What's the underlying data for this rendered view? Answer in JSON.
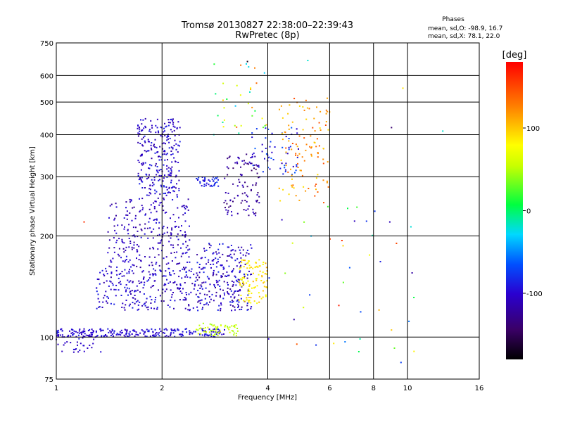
{
  "chart_data": {
    "type": "scatter",
    "title": "Tromsø 20130827 22:38:00–22:39:43",
    "subtitle": "RwPretec (8p)",
    "xlabel": "Frequency [MHz]",
    "ylabel": "Stationary phase Virtual Height [km]",
    "x_scale": "log",
    "y_scale": "log",
    "xlim": [
      1,
      16
    ],
    "ylim": [
      75,
      750
    ],
    "x_ticks": [
      1,
      2,
      4,
      6,
      8,
      10,
      16
    ],
    "y_ticks": [
      75,
      100,
      200,
      300,
      400,
      500,
      600,
      750
    ],
    "x_tick_labels": [
      "1",
      "2",
      "4",
      "6",
      "8",
      "10",
      "16"
    ],
    "y_tick_labels": [
      "75",
      "100",
      "200",
      "300",
      "400",
      "500",
      "600",
      "750"
    ],
    "grid": true,
    "stats": {
      "header": "Phases",
      "line_o": "mean, sd,O: -98.9, 16.7",
      "line_x": "mean, sd,X:  78.1, 22.0"
    },
    "colorbar": {
      "label": "[deg]",
      "range": [
        -180,
        180
      ],
      "ticks": [
        100,
        0,
        -100
      ],
      "tick_labels": [
        "100",
        "0",
        "-100"
      ]
    },
    "clusters": [
      {
        "f": [
          1.0,
          3.05
        ],
        "h": [
          100,
          106
        ],
        "n": 240,
        "phase": [
          -110,
          -85
        ]
      },
      {
        "f": [
          2.5,
          3.3
        ],
        "h": [
          101,
          110
        ],
        "n": 60,
        "phase": [
          40,
          70
        ]
      },
      {
        "f": [
          1.0,
          1.35
        ],
        "h": [
          90,
          102
        ],
        "n": 40,
        "phase": [
          -115,
          -90
        ]
      },
      {
        "f": [
          1.3,
          2.6
        ],
        "h": [
          120,
          160
        ],
        "n": 260,
        "phase": [
          -120,
          -85
        ]
      },
      {
        "f": [
          1.4,
          2.4
        ],
        "h": [
          160,
          260
        ],
        "n": 260,
        "phase": [
          -125,
          -90
        ]
      },
      {
        "f": [
          1.7,
          2.25
        ],
        "h": [
          260,
          450
        ],
        "n": 260,
        "phase": [
          -120,
          -85
        ]
      },
      {
        "f": [
          2.5,
          3.6
        ],
        "h": [
          120,
          190
        ],
        "n": 240,
        "phase": [
          -130,
          -80
        ]
      },
      {
        "f": [
          3.0,
          3.8
        ],
        "h": [
          230,
          350
        ],
        "n": 100,
        "phase": [
          -145,
          -100
        ]
      },
      {
        "f": [
          2.5,
          2.9
        ],
        "h": [
          280,
          300
        ],
        "n": 40,
        "phase": [
          -100,
          -70
        ]
      },
      {
        "f": [
          3.3,
          4.0
        ],
        "h": [
          125,
          170
        ],
        "n": 100,
        "phase": [
          70,
          110
        ]
      },
      {
        "f": [
          3.6,
          4.9
        ],
        "h": [
          300,
          420
        ],
        "n": 60,
        "phase": [
          -120,
          -60
        ]
      },
      {
        "f": [
          4.3,
          6.0
        ],
        "h": [
          250,
          520
        ],
        "n": 110,
        "phase": [
          90,
          150
        ]
      },
      {
        "f": [
          2.8,
          4.0
        ],
        "h": [
          380,
          650
        ],
        "n": 35,
        "phase": [
          -40,
          140
        ]
      },
      {
        "f": [
          4.0,
          10.5
        ],
        "h": [
          80,
          250
        ],
        "n": 40,
        "phase": [
          -120,
          170
        ]
      }
    ],
    "isolated_points": [
      {
        "f": 12.6,
        "h": 410,
        "phase": -20
      },
      {
        "f": 9.0,
        "h": 420,
        "phase": -140
      },
      {
        "f": 8.9,
        "h": 220,
        "phase": -110
      },
      {
        "f": 9.3,
        "h": 190,
        "phase": 150
      },
      {
        "f": 9.7,
        "h": 550,
        "phase": 90
      },
      {
        "f": 9.0,
        "h": 105,
        "phase": 100
      },
      {
        "f": 3.5,
        "h": 660,
        "phase": -170
      },
      {
        "f": 5.2,
        "h": 665,
        "phase": -20
      },
      {
        "f": 1.2,
        "h": 220,
        "phase": 160
      }
    ]
  }
}
